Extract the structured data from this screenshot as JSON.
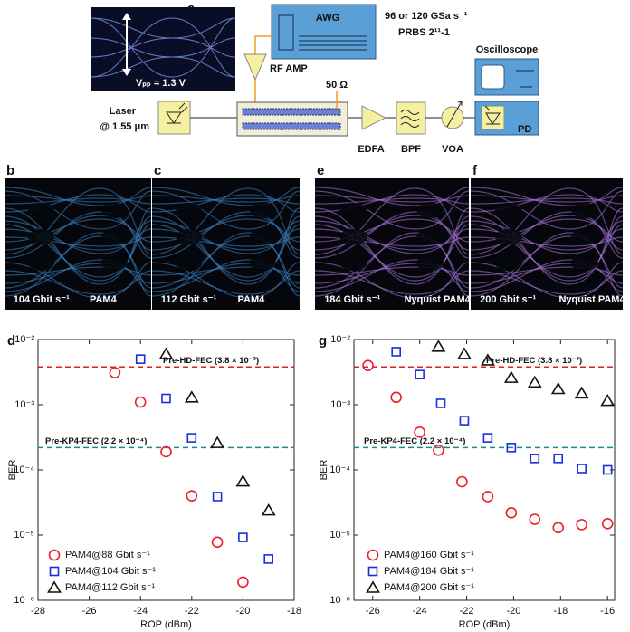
{
  "diagram": {
    "label": "a",
    "vpp": "Vₚₚ = 1.3 V",
    "awg": "AWG",
    "awg_specs": [
      "96 or 120 GSa s⁻¹",
      "PRBS 2¹¹-1"
    ],
    "rf_amp": "RF AMP",
    "termination": "50 Ω",
    "laser": [
      "Laser",
      "@ 1.55 μm"
    ],
    "edfa": "EDFA",
    "bpf": "BPF",
    "voa": "VOA",
    "oscilloscope": "Oscilloscope",
    "pd": "PD"
  },
  "eyes": [
    {
      "label": "b",
      "rate": "104 Gbit s⁻¹",
      "format": "PAM4",
      "color": "#3f86c8"
    },
    {
      "label": "c",
      "rate": "112 Gbit s⁻¹",
      "format": "PAM4",
      "color": "#3f86c8"
    },
    {
      "label": "e",
      "rate": "184 Gbit s⁻¹",
      "format": "Nyquist PAM4",
      "color": "#b07ae0"
    },
    {
      "label": "f",
      "rate": "200 Gbit s⁻¹",
      "format": "Nyquist PAM4",
      "color": "#b07ae0"
    }
  ],
  "chart_data": [
    {
      "type": "scatter",
      "label": "d",
      "xlabel": "ROP (dBm)",
      "ylabel": "BER",
      "log_y": true,
      "xlim": [
        -28,
        -18
      ],
      "xticks": [
        -28,
        -26,
        -24,
        -22,
        -20,
        -18
      ],
      "ylim": [
        1e-06,
        0.01
      ],
      "yticks": [
        {
          "value": 1e-06,
          "label": "10⁻⁶"
        },
        {
          "value": 1e-05,
          "label": "10⁻⁵"
        },
        {
          "value": 0.0001,
          "label": "10⁻⁴"
        },
        {
          "value": 0.001,
          "label": "10⁻³"
        },
        {
          "value": 0.01,
          "label": "10⁻²"
        }
      ],
      "thresholds": [
        {
          "value": 0.0038,
          "label": "Pre-HD-FEC (3.8 × 10⁻³)",
          "color": "#e02020"
        },
        {
          "value": 0.00022,
          "label": "Pre-KP4-FEC (2.2 × 10⁻⁴)",
          "color": "#1a8a8a"
        }
      ],
      "series": [
        {
          "name": "PAM4@88 Gbit s⁻¹",
          "color": "#e8202a",
          "marker": "circle",
          "x": [
            -25,
            -24,
            -23,
            -22,
            -21,
            -20
          ],
          "values": [
            0.0031,
            0.0011,
            0.00019,
            4e-05,
            7.8e-06,
            1.9e-06
          ]
        },
        {
          "name": "PAM4@104 Gbit s⁻¹",
          "color": "#1a2ee0",
          "marker": "square",
          "x": [
            -24,
            -23,
            -22,
            -21,
            -20,
            -19
          ],
          "values": [
            0.005,
            0.00125,
            0.00031,
            3.9e-05,
            9.2e-06,
            4.3e-06
          ]
        },
        {
          "name": "PAM4@112 Gbit s⁻¹",
          "color": "#111111",
          "marker": "triangle",
          "x": [
            -23,
            -22,
            -21,
            -20,
            -19
          ],
          "values": [
            0.006,
            0.0013,
            0.00026,
            6.7e-05,
            2.4e-05
          ]
        }
      ]
    },
    {
      "type": "scatter",
      "label": "g",
      "xlabel": "ROP (dBm)",
      "ylabel": "BER",
      "log_y": true,
      "xlim": [
        -26.8,
        -15.7
      ],
      "xticks": [
        -26,
        -24,
        -22,
        -20,
        -18,
        -16
      ],
      "ylim": [
        1e-06,
        0.01
      ],
      "yticks": [
        {
          "value": 1e-06,
          "label": "10⁻⁶"
        },
        {
          "value": 1e-05,
          "label": "10⁻⁵"
        },
        {
          "value": 0.0001,
          "label": "10⁻⁴"
        },
        {
          "value": 0.001,
          "label": "10⁻³"
        },
        {
          "value": 0.01,
          "label": "10⁻²"
        }
      ],
      "thresholds": [
        {
          "value": 0.0038,
          "label": "Pre-HD-FEC (3.8 × 10⁻³)",
          "color": "#e02020"
        },
        {
          "value": 0.00022,
          "label": "Pre-KP4-FEC (2.2 × 10⁻⁴)",
          "color": "#1a8a8a"
        }
      ],
      "series": [
        {
          "name": "PAM4@160 Gbit s⁻¹",
          "color": "#e8202a",
          "marker": "circle",
          "x": [
            -26.2,
            -25,
            -24,
            -23.2,
            -22.2,
            -21.1,
            -20.1,
            -19.1,
            -18.1,
            -17.1,
            -16
          ],
          "values": [
            0.004,
            0.0013,
            0.00038,
            0.0002,
            6.6e-05,
            3.9e-05,
            2.2e-05,
            1.75e-05,
            1.3e-05,
            1.45e-05,
            1.5e-05
          ]
        },
        {
          "name": "PAM4@184 Gbit s⁻¹",
          "color": "#1a2ee0",
          "marker": "square",
          "x": [
            -25,
            -24,
            -23.1,
            -22.1,
            -21.1,
            -20.1,
            -19.1,
            -18.1,
            -17.1,
            -16
          ],
          "values": [
            0.0065,
            0.0029,
            0.00105,
            0.00057,
            0.00031,
            0.00022,
            0.00015,
            0.00015,
            0.000105,
            0.0001
          ]
        },
        {
          "name": "PAM4@200 Gbit s⁻¹",
          "color": "#111111",
          "marker": "triangle",
          "x": [
            -23.2,
            -22.1,
            -21.1,
            -20.1,
            -19.1,
            -18.1,
            -17.1,
            -16
          ],
          "values": [
            0.0078,
            0.006,
            0.0048,
            0.0026,
            0.0022,
            0.00175,
            0.0015,
            0.00115
          ]
        }
      ]
    }
  ]
}
